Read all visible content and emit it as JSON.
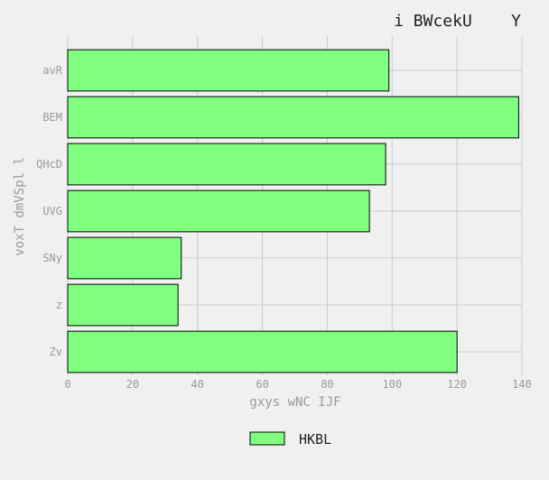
{
  "chart_data": {
    "type": "bar",
    "orientation": "horizontal",
    "title": "i BWcekU    Y",
    "xlabel": "gxys wNC IJF",
    "ylabel": "voxT dmVSpl l",
    "categories": [
      "avR",
      "BEM",
      "QHcD",
      "UVG",
      "SNy",
      "z",
      "Zv"
    ],
    "series": [
      {
        "name": "HKBL",
        "values": [
          99,
          139,
          98,
          93,
          35,
          34,
          120
        ]
      }
    ],
    "xlim": [
      0,
      140
    ],
    "xticks": [
      "0",
      "20",
      "40",
      "60",
      "80",
      "100",
      "120",
      "140"
    ],
    "grid": true,
    "legend": "bottom-center",
    "colors": {
      "bar_fill": "#80ff80",
      "bar_edge": "#000000",
      "grid": "#cccccc",
      "background": "#f0f0f0"
    }
  }
}
